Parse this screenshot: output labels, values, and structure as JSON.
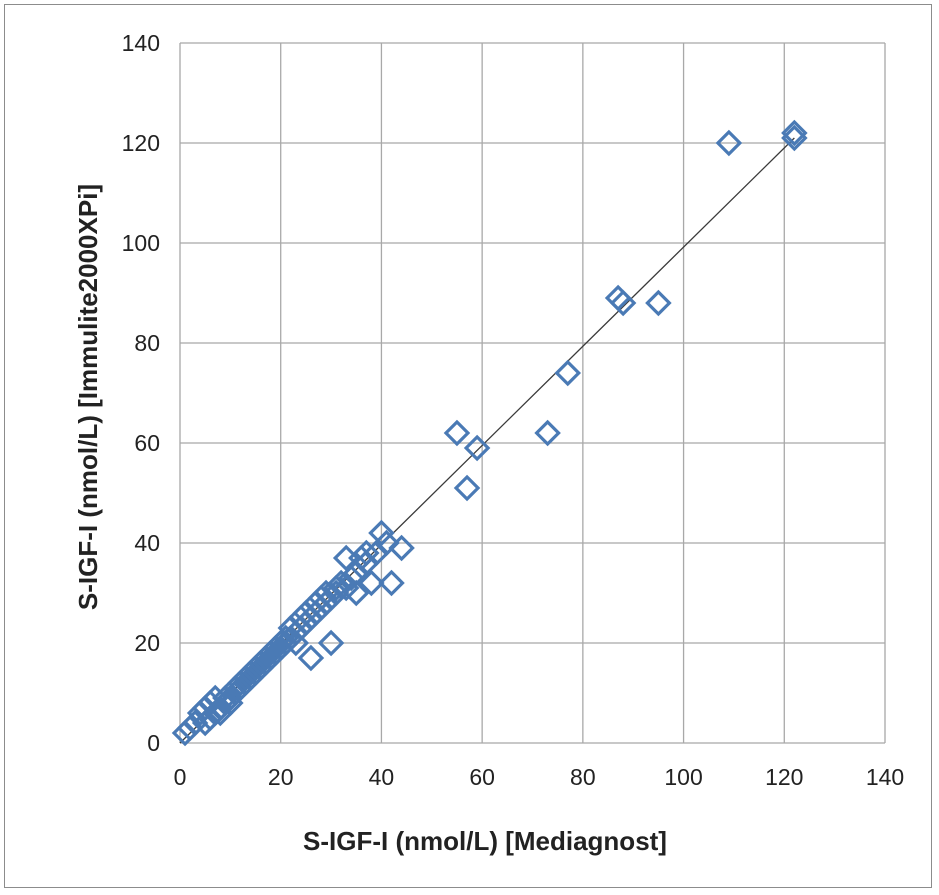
{
  "chart_data": {
    "type": "scatter",
    "title": "",
    "xlabel": "S-IGF-I (nmol/L)   [Mediagnost]",
    "ylabel": "S-IGF-I (nmol/L)   [Immulite2000XPi]",
    "xlim": [
      0,
      140
    ],
    "ylim": [
      0,
      140
    ],
    "xticks": [
      0,
      20,
      40,
      60,
      80,
      100,
      120,
      140
    ],
    "yticks": [
      0,
      20,
      40,
      60,
      80,
      100,
      120,
      140
    ],
    "grid": true,
    "legend": "none",
    "marker": "open-diamond",
    "colors": {
      "marker": "#4a7ab5",
      "line": "#3a3a3a",
      "grid": "#a8a8a8"
    },
    "trendline": {
      "x": [
        0,
        122
      ],
      "y": [
        0,
        121
      ]
    },
    "points": [
      [
        1,
        2
      ],
      [
        2,
        3
      ],
      [
        3,
        4
      ],
      [
        4,
        6
      ],
      [
        5,
        4
      ],
      [
        5,
        7
      ],
      [
        6,
        5
      ],
      [
        6,
        8
      ],
      [
        7,
        6
      ],
      [
        7,
        9
      ],
      [
        8,
        7
      ],
      [
        8,
        6
      ],
      [
        9,
        8
      ],
      [
        9,
        9
      ],
      [
        10,
        9
      ],
      [
        10,
        8
      ],
      [
        11,
        10
      ],
      [
        11,
        11
      ],
      [
        12,
        11
      ],
      [
        12,
        12
      ],
      [
        13,
        12
      ],
      [
        13,
        13
      ],
      [
        14,
        13
      ],
      [
        14,
        14
      ],
      [
        15,
        14
      ],
      [
        15,
        15
      ],
      [
        16,
        15
      ],
      [
        16,
        16
      ],
      [
        17,
        16
      ],
      [
        17,
        17
      ],
      [
        18,
        17
      ],
      [
        18,
        18
      ],
      [
        19,
        18
      ],
      [
        19,
        19
      ],
      [
        20,
        19
      ],
      [
        20,
        20
      ],
      [
        21,
        20
      ],
      [
        21,
        21
      ],
      [
        22,
        21
      ],
      [
        22,
        23
      ],
      [
        23,
        22
      ],
      [
        23,
        20
      ],
      [
        24,
        25
      ],
      [
        24,
        23
      ],
      [
        25,
        24
      ],
      [
        25,
        26
      ],
      [
        26,
        17
      ],
      [
        26,
        25
      ],
      [
        27,
        26
      ],
      [
        27,
        28
      ],
      [
        28,
        27
      ],
      [
        28,
        29
      ],
      [
        29,
        28
      ],
      [
        29,
        30
      ],
      [
        30,
        20
      ],
      [
        30,
        29
      ],
      [
        31,
        31
      ],
      [
        31,
        30
      ],
      [
        32,
        32
      ],
      [
        33,
        31
      ],
      [
        33,
        37
      ],
      [
        34,
        33
      ],
      [
        35,
        34
      ],
      [
        35,
        30
      ],
      [
        36,
        37
      ],
      [
        37,
        36
      ],
      [
        37,
        38
      ],
      [
        38,
        32
      ],
      [
        39,
        38
      ],
      [
        40,
        42
      ],
      [
        41,
        40
      ],
      [
        42,
        32
      ],
      [
        44,
        39
      ],
      [
        55,
        62
      ],
      [
        57,
        51
      ],
      [
        59,
        59
      ],
      [
        73,
        62
      ],
      [
        77,
        74
      ],
      [
        87,
        89
      ],
      [
        88,
        88
      ],
      [
        95,
        88
      ],
      [
        109,
        120
      ],
      [
        122,
        121
      ],
      [
        122,
        122
      ]
    ]
  }
}
